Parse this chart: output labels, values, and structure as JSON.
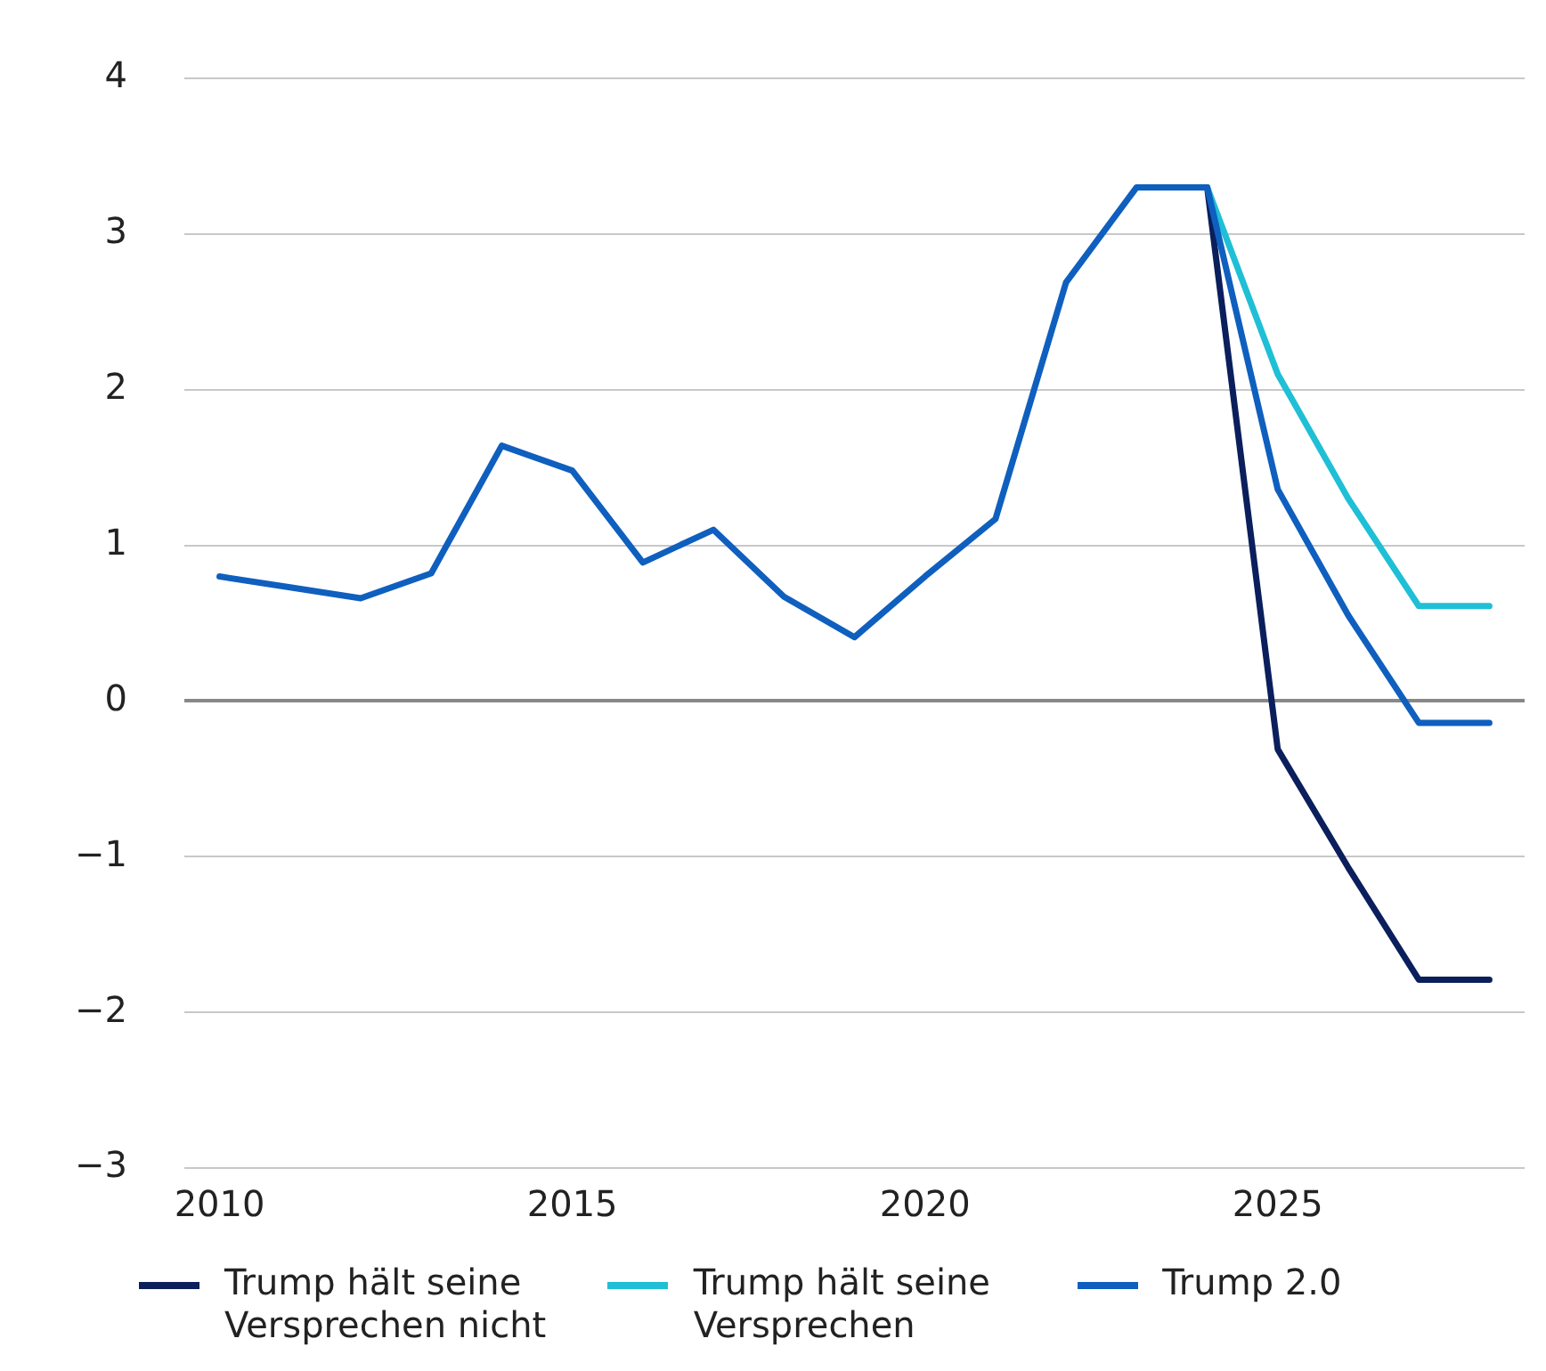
{
  "chart_data": {
    "type": "line",
    "x": [
      2010,
      2011,
      2012,
      2013,
      2014,
      2015,
      2016,
      2017,
      2018,
      2019,
      2020,
      2021,
      2022,
      2023,
      2024,
      2025,
      2026,
      2027,
      2028
    ],
    "series": [
      {
        "name": "Trump hält seine Versprechen nicht",
        "color": "#0a1f5c",
        "values": [
          null,
          null,
          null,
          null,
          null,
          null,
          null,
          null,
          null,
          null,
          null,
          null,
          null,
          null,
          3.3,
          -0.31,
          -1.07,
          -1.79,
          -1.79
        ]
      },
      {
        "name": "Trump hält seine Versprechen",
        "color": "#1fbfd6",
        "values": [
          null,
          null,
          null,
          null,
          null,
          null,
          null,
          null,
          null,
          null,
          null,
          null,
          null,
          null,
          3.3,
          2.1,
          1.3,
          0.61,
          0.61
        ]
      },
      {
        "name": "Trump 2.0",
        "color": "#0f5fbf",
        "values": [
          0.8,
          0.73,
          0.66,
          0.82,
          1.64,
          1.48,
          0.89,
          1.1,
          0.67,
          0.41,
          0.8,
          1.17,
          2.69,
          3.3,
          3.3,
          1.36,
          0.55,
          -0.14,
          -0.14
        ]
      }
    ],
    "xlim": [
      2009.5,
      2028.5
    ],
    "xticks": [
      2010,
      2015,
      2020,
      2025
    ],
    "ylim": [
      -3,
      4
    ],
    "yticks": [
      -3,
      -2,
      -1,
      0,
      1,
      2,
      3,
      4
    ],
    "grid": "y",
    "legend": "bottom",
    "marker": "none",
    "line_style": "solid"
  }
}
